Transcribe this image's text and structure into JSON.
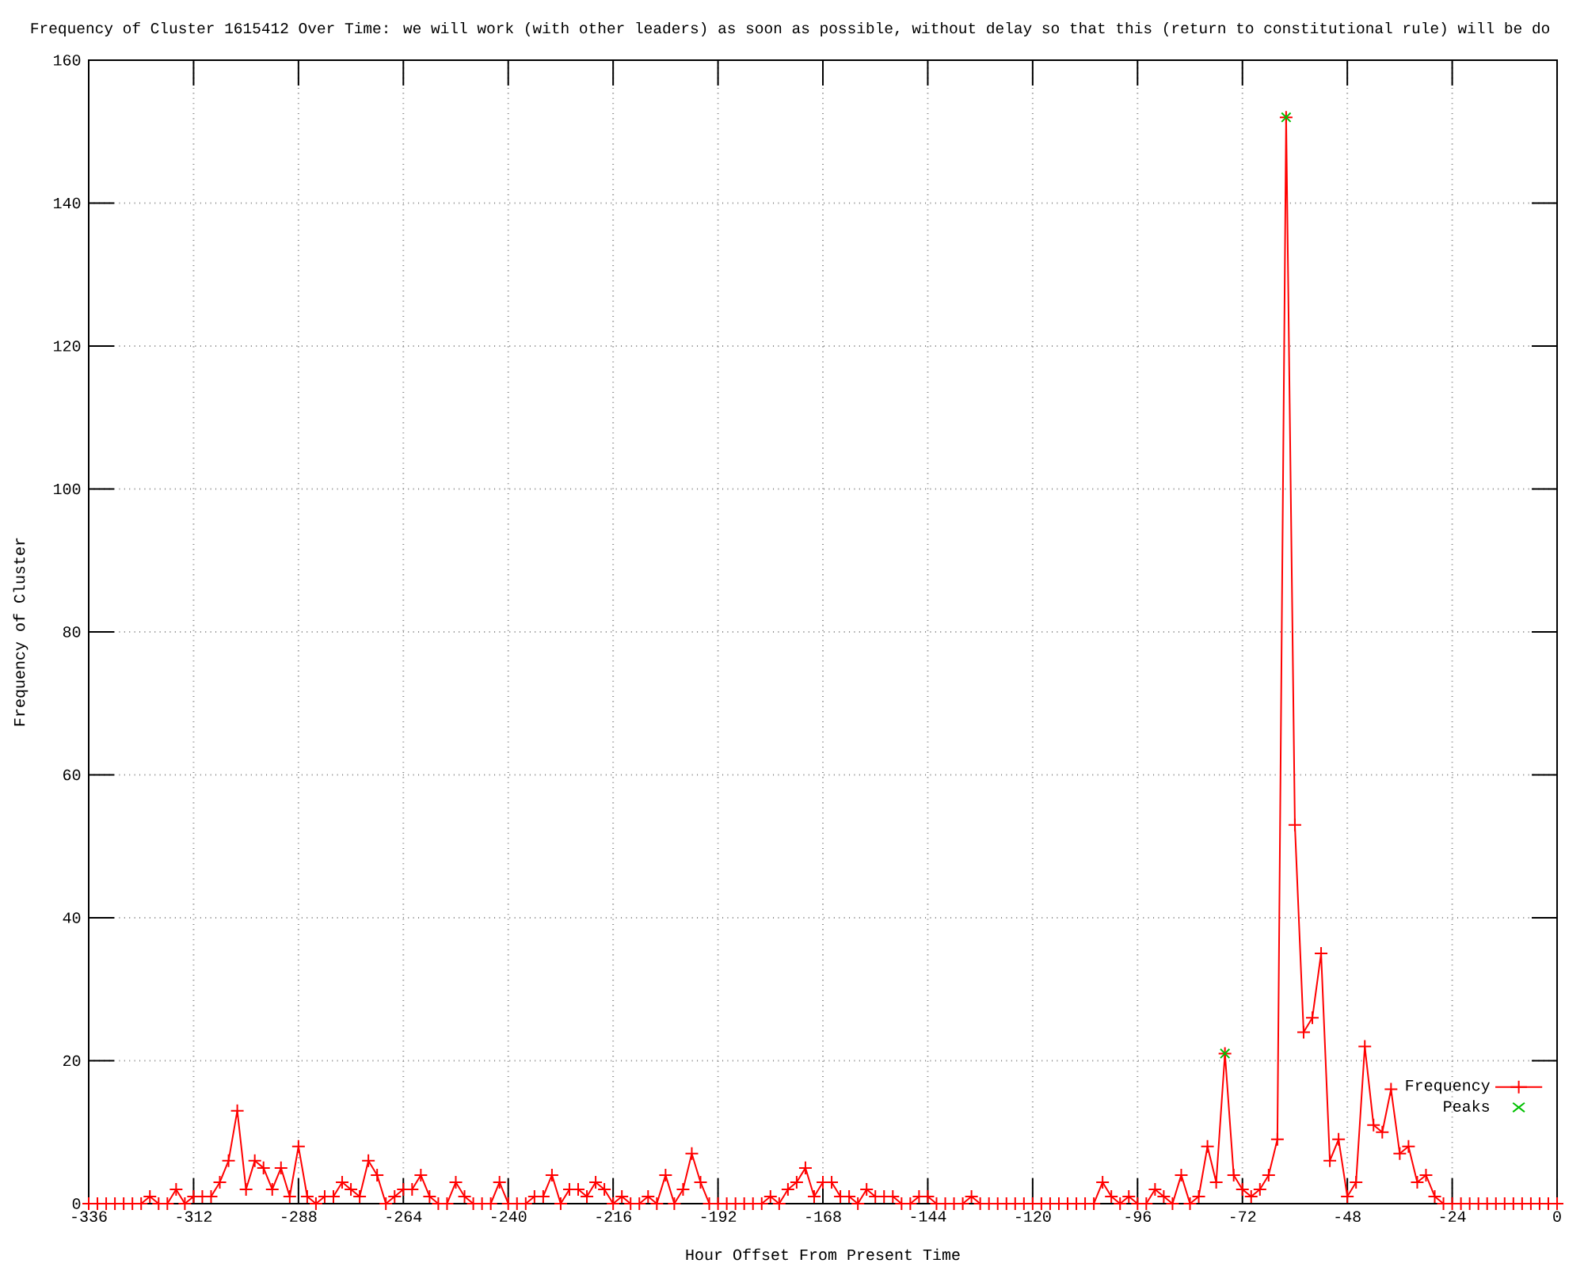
{
  "chart_data": {
    "type": "line",
    "title": "Frequency of Cluster 1615412 Over Time: we will work (with other leaders) as soon as possible, without delay so that this (return to constitutional rule) will be do",
    "xlabel": "Hour Offset From Present Time",
    "ylabel": "Frequency of Cluster",
    "x": [
      -336,
      -334,
      -332,
      -330,
      -328,
      -326,
      -324,
      -322,
      -320,
      -318,
      -316,
      -314,
      -312,
      -310,
      -308,
      -306,
      -304,
      -302,
      -300,
      -298,
      -296,
      -294,
      -292,
      -290,
      -288,
      -286,
      -284,
      -282,
      -280,
      -278,
      -276,
      -274,
      -272,
      -270,
      -268,
      -266,
      -264,
      -262,
      -260,
      -258,
      -256,
      -254,
      -252,
      -250,
      -248,
      -246,
      -244,
      -242,
      -240,
      -238,
      -236,
      -234,
      -232,
      -230,
      -228,
      -226,
      -224,
      -222,
      -220,
      -218,
      -216,
      -214,
      -212,
      -210,
      -208,
      -206,
      -204,
      -202,
      -200,
      -198,
      -196,
      -194,
      -192,
      -190,
      -188,
      -186,
      -184,
      -182,
      -180,
      -178,
      -176,
      -174,
      -172,
      -170,
      -168,
      -166,
      -164,
      -162,
      -160,
      -158,
      -156,
      -154,
      -152,
      -150,
      -148,
      -146,
      -144,
      -142,
      -140,
      -138,
      -136,
      -134,
      -132,
      -130,
      -128,
      -126,
      -124,
      -122,
      -120,
      -118,
      -116,
      -114,
      -112,
      -110,
      -108,
      -106,
      -104,
      -102,
      -100,
      -98,
      -96,
      -94,
      -92,
      -90,
      -88,
      -86,
      -84,
      -82,
      -80,
      -78,
      -76,
      -74,
      -72,
      -70,
      -68,
      -66,
      -64,
      -62,
      -60,
      -58,
      -56,
      -54,
      -52,
      -50,
      -48,
      -46,
      -44,
      -42,
      -40,
      -38,
      -36,
      -34,
      -32,
      -30,
      -28,
      -26,
      -24,
      -22,
      -20,
      -18,
      -16,
      -14,
      -12,
      -10,
      -8,
      -6,
      -4,
      -2,
      0
    ],
    "series": [
      {
        "name": "Frequency",
        "color": "#ff0000",
        "marker": "cross",
        "values": [
          0,
          0,
          0,
          0,
          0,
          0,
          0,
          1,
          0,
          0,
          2,
          0,
          1,
          1,
          1,
          3,
          6,
          13,
          2,
          6,
          5,
          2,
          5,
          1,
          8,
          1,
          0,
          1,
          1,
          3,
          2,
          1,
          6,
          4,
          0,
          1,
          2,
          2,
          4,
          1,
          0,
          0,
          3,
          1,
          0,
          0,
          0,
          3,
          0,
          0,
          0,
          1,
          1,
          4,
          0,
          2,
          2,
          1,
          3,
          2,
          0,
          1,
          0,
          0,
          1,
          0,
          4,
          0,
          2,
          7,
          3,
          0,
          0,
          0,
          0,
          0,
          0,
          0,
          1,
          0,
          2,
          3,
          5,
          1,
          3,
          3,
          1,
          1,
          0,
          2,
          1,
          1,
          1,
          0,
          0,
          1,
          1,
          0,
          0,
          0,
          0,
          1,
          0,
          0,
          0,
          0,
          0,
          0,
          0,
          0,
          0,
          0,
          0,
          0,
          0,
          0,
          3,
          1,
          0,
          1,
          0,
          0,
          2,
          1,
          0,
          4,
          0,
          1,
          8,
          3,
          21,
          4,
          2,
          1,
          2,
          4,
          9,
          152,
          53,
          24,
          26,
          35,
          6,
          9,
          1,
          3,
          22,
          11,
          10,
          16,
          7,
          8,
          3,
          4,
          1,
          0,
          0,
          0,
          0,
          0,
          0,
          0,
          0,
          0,
          0,
          0,
          0,
          0,
          0
        ]
      },
      {
        "name": "Peaks",
        "type": "scatter",
        "color": "#00c000",
        "marker": "cross",
        "x": [
          -76,
          -62
        ],
        "values": [
          21,
          152
        ]
      }
    ],
    "xlim": [
      -336,
      0
    ],
    "xticks": [
      -336,
      -312,
      -288,
      -264,
      -240,
      -216,
      -192,
      -168,
      -144,
      -120,
      -96,
      -72,
      -48,
      -24,
      0
    ],
    "ylim": [
      0,
      160
    ],
    "yticks": [
      0,
      20,
      40,
      60,
      80,
      100,
      120,
      140,
      160
    ],
    "grid": true,
    "legend": "bottom right"
  }
}
